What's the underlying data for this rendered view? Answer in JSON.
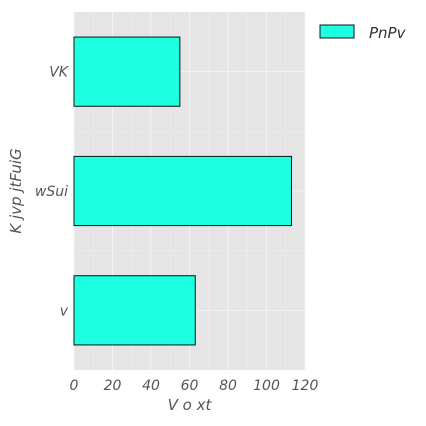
{
  "chart_data": {
    "type": "bar",
    "orientation": "horizontal",
    "title": "",
    "xlabel": "V o xt",
    "ylabel": "K jvp jtFuiG",
    "categories": [
      "VK",
      "wSui",
      "v"
    ],
    "series": [
      {
        "name": "PnPv",
        "values": [
          55,
          113,
          63
        ]
      }
    ],
    "xlim": [
      0,
      120
    ],
    "xticks": [
      0,
      20,
      40,
      60,
      80,
      100,
      120
    ],
    "grid": true,
    "legend": "top-right",
    "colors": {
      "bar_fill": "#1cffe0",
      "bar_edge": "#111111",
      "plot_background": "#e5e5e5",
      "grid": "#f4f4f4"
    }
  }
}
